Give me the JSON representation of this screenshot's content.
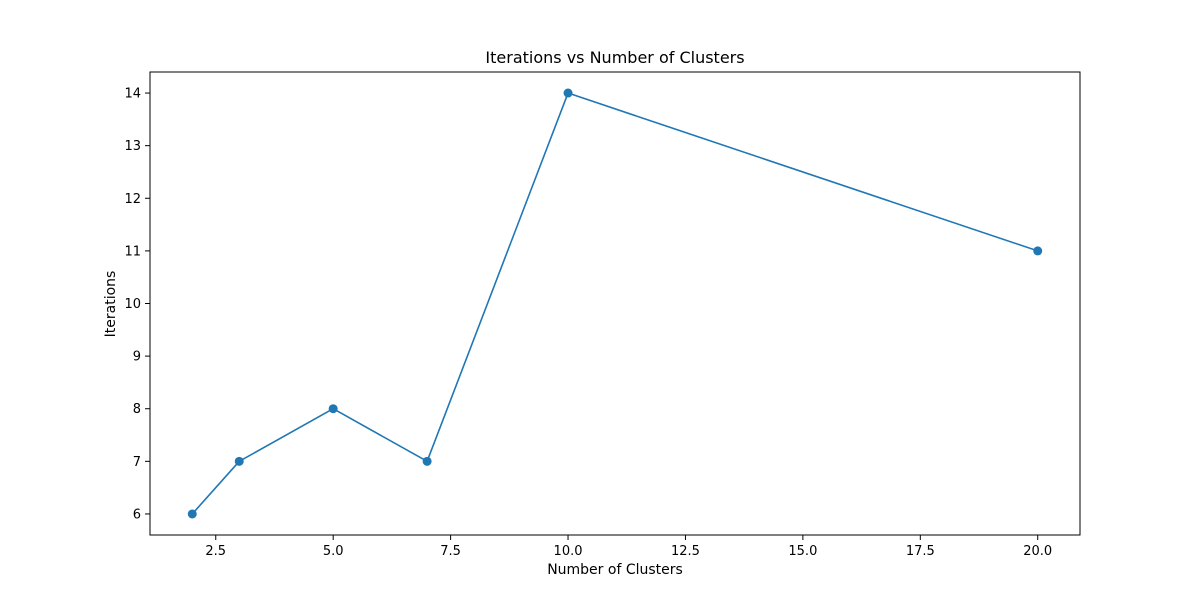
{
  "chart_data": {
    "type": "line",
    "title": "Iterations vs Number of Clusters",
    "xlabel": "Number of Clusters",
    "ylabel": "Iterations",
    "x": [
      2,
      3,
      5,
      7,
      10,
      20
    ],
    "series": [
      {
        "values": [
          6,
          7,
          8,
          7,
          14,
          11
        ],
        "color": "#1f77b4",
        "marker": "circle"
      }
    ],
    "xlim": [
      1.1,
      20.9
    ],
    "ylim": [
      5.6,
      14.4
    ],
    "xticks": [
      2.5,
      5.0,
      7.5,
      10.0,
      12.5,
      15.0,
      17.5,
      20.0
    ],
    "xtick_labels": [
      "2.5",
      "5.0",
      "7.5",
      "10.0",
      "12.5",
      "15.0",
      "17.5",
      "20.0"
    ],
    "yticks": [
      6,
      7,
      8,
      9,
      10,
      11,
      12,
      13,
      14
    ],
    "ytick_labels": [
      "6",
      "7",
      "8",
      "9",
      "10",
      "11",
      "12",
      "13",
      "14"
    ],
    "grid": false,
    "legend": false
  }
}
